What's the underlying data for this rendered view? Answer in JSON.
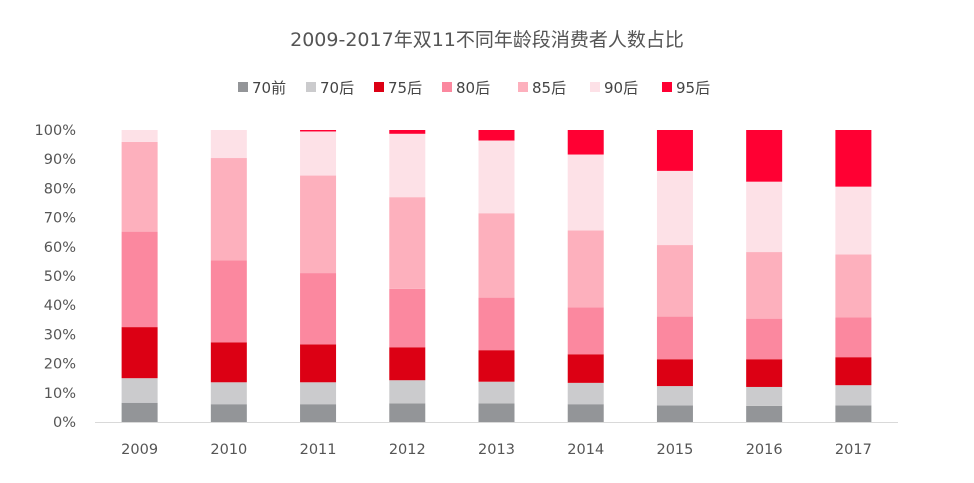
{
  "chart_data": {
    "type": "bar",
    "stacked": true,
    "title": "2009-2017年双11不同年龄段消费者人数占比",
    "xlabel": "",
    "ylabel": "",
    "ylim": [
      0,
      100
    ],
    "y_ticks": [
      "0%",
      "10%",
      "20%",
      "30%",
      "40%",
      "50%",
      "60%",
      "70%",
      "80%",
      "90%",
      "100%"
    ],
    "categories": [
      "2009",
      "2010",
      "2011",
      "2012",
      "2013",
      "2014",
      "2015",
      "2016",
      "2017"
    ],
    "legend_position": "top",
    "grid": false,
    "series": [
      {
        "name": "70前",
        "color": "#939598",
        "values": [
          6.6,
          6.1,
          6.1,
          6.4,
          6.4,
          6.1,
          5.7,
          5.5,
          5.7
        ]
      },
      {
        "name": "70后",
        "color": "#cbcbcd",
        "values": [
          8.4,
          7.5,
          7.5,
          7.9,
          7.4,
          7.3,
          6.6,
          6.5,
          6.9
        ]
      },
      {
        "name": "75后",
        "color": "#dc0014",
        "values": [
          17.5,
          13.7,
          13.0,
          11.3,
          10.8,
          9.8,
          9.2,
          9.5,
          9.6
        ]
      },
      {
        "name": "80后",
        "color": "#fb889f",
        "values": [
          32.7,
          28.0,
          24.4,
          20.0,
          18.0,
          16.1,
          14.6,
          13.9,
          13.6
        ]
      },
      {
        "name": "85后",
        "color": "#fdb0bd",
        "values": [
          30.7,
          35.1,
          33.4,
          31.4,
          28.9,
          26.3,
          24.5,
          22.8,
          21.6
        ]
      },
      {
        "name": "90后",
        "color": "#fde1e7",
        "values": [
          4.1,
          9.6,
          15.1,
          21.7,
          24.9,
          26.0,
          25.4,
          24.1,
          23.2
        ]
      },
      {
        "name": "95后",
        "color": "#ff0033",
        "values": [
          0,
          0,
          0.5,
          1.3,
          3.6,
          8.4,
          14.0,
          17.7,
          19.4
        ]
      }
    ]
  }
}
